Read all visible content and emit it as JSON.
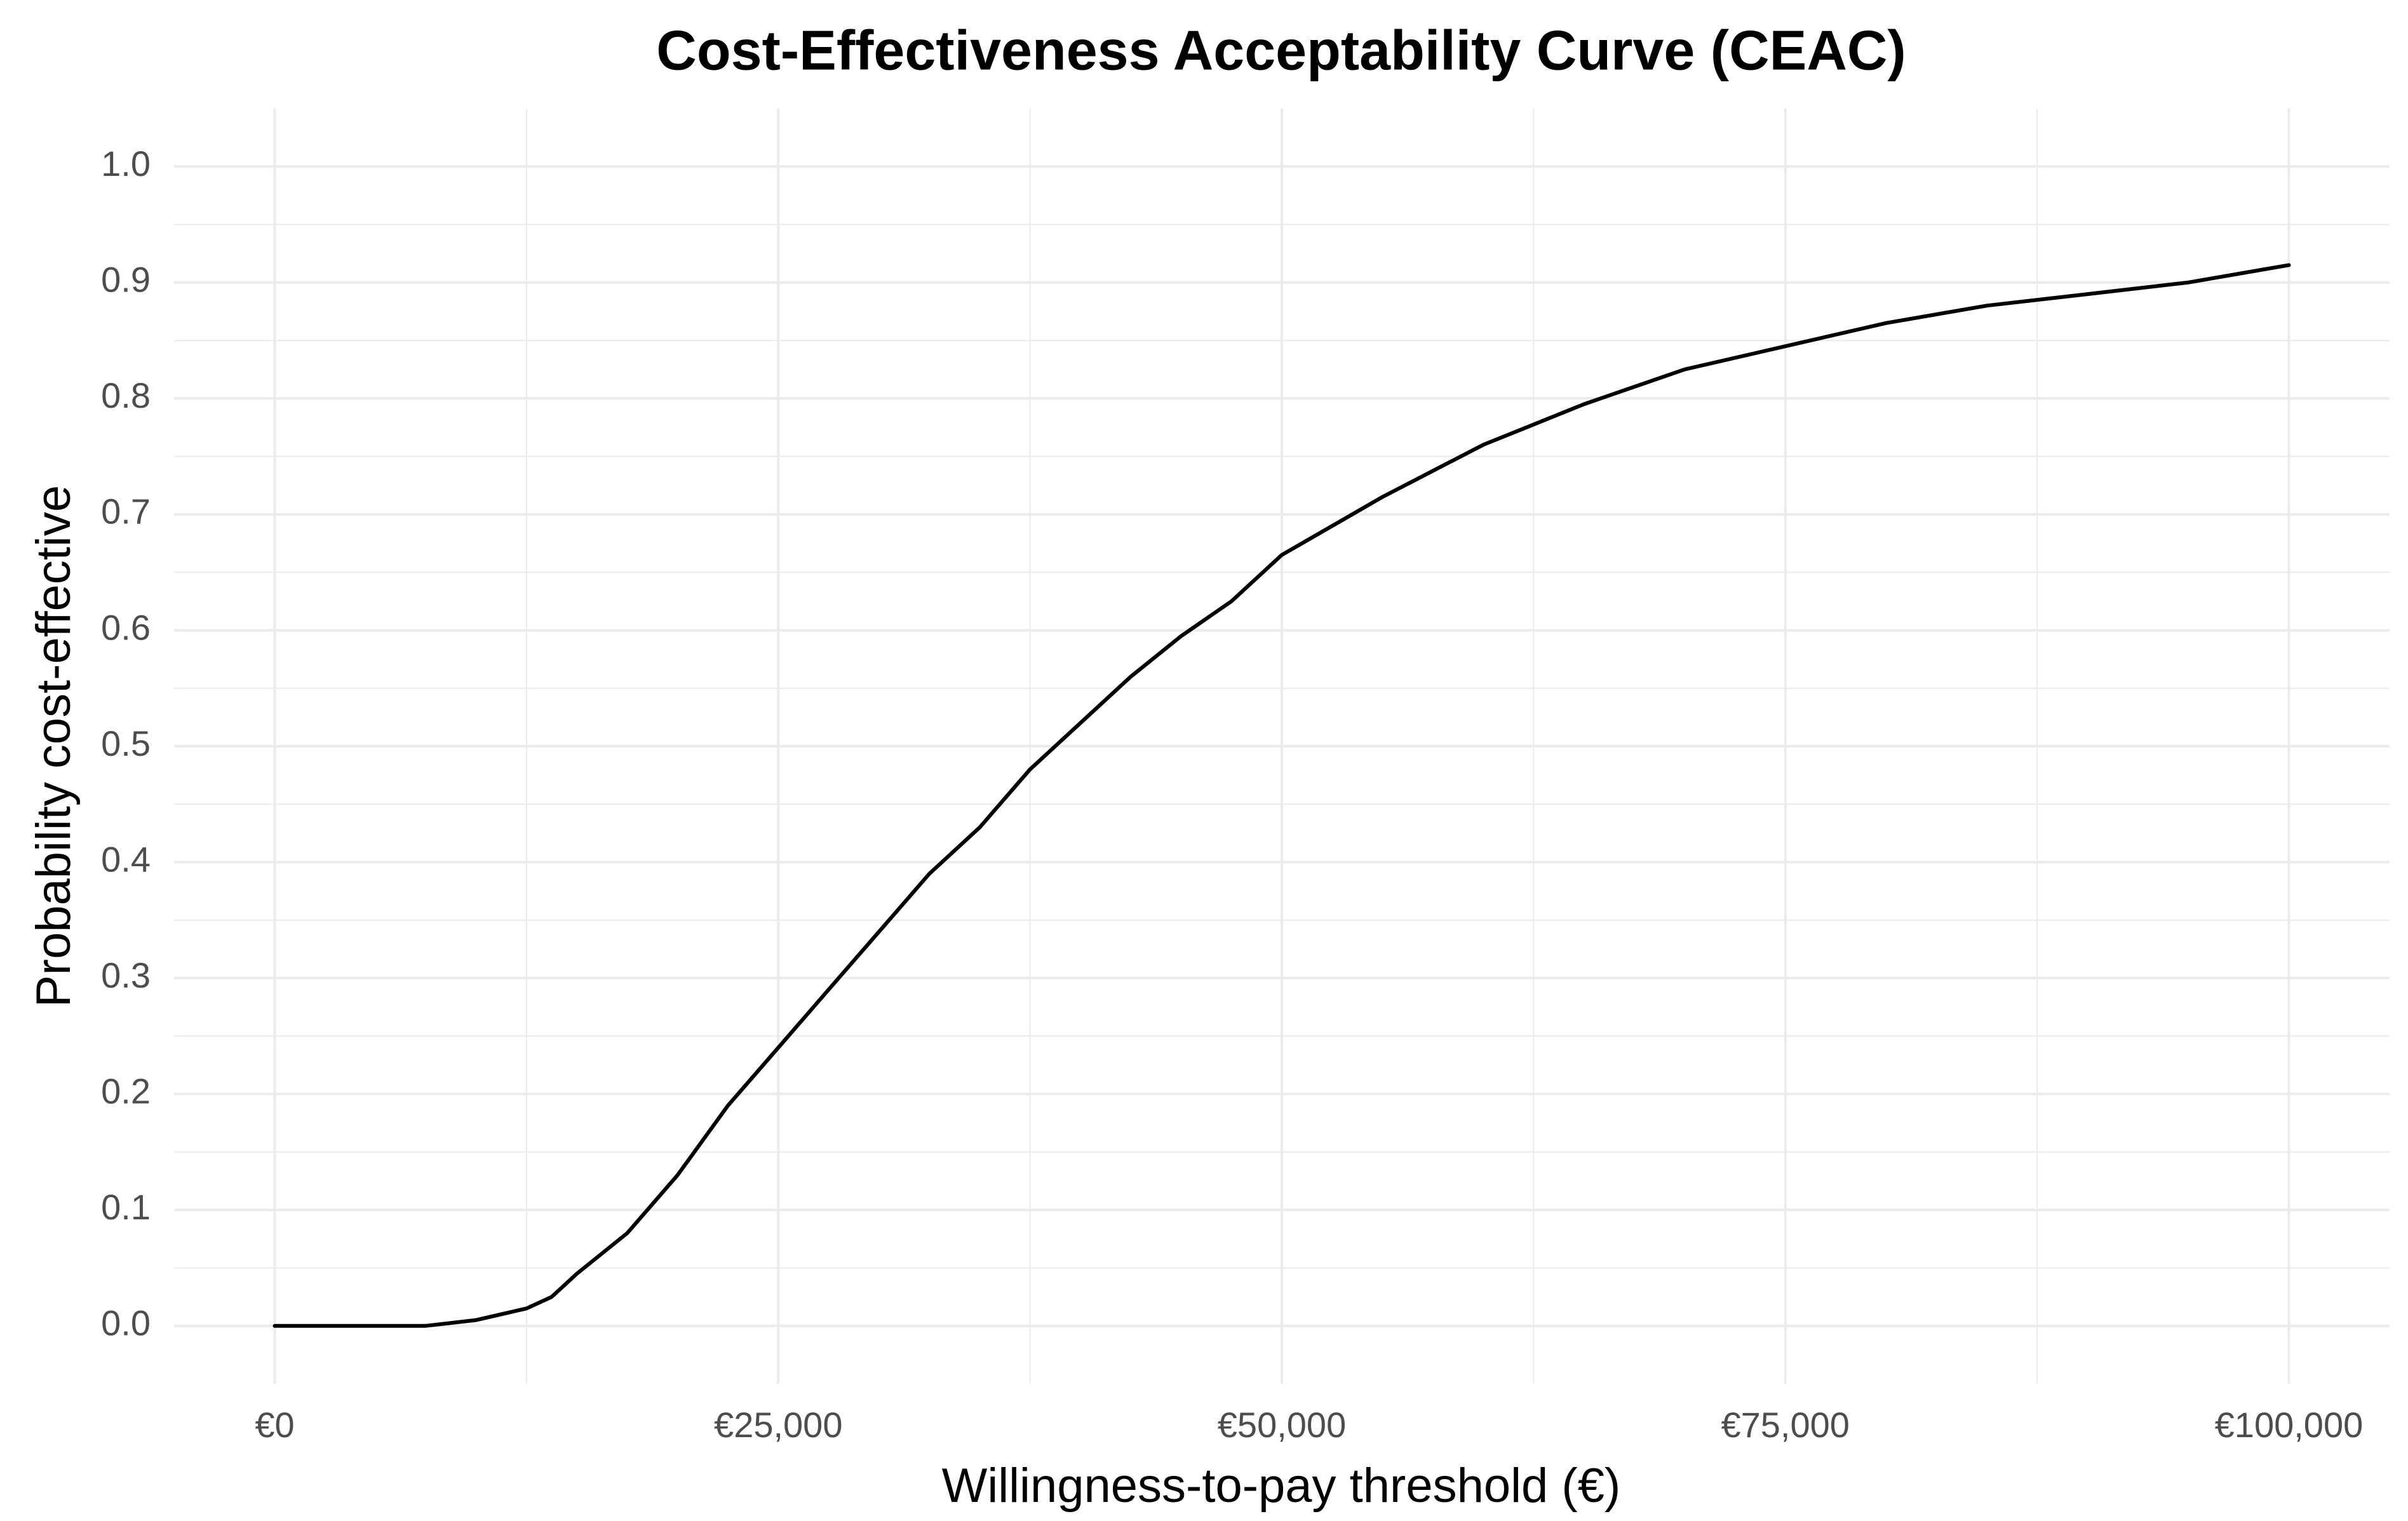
{
  "chart_data": {
    "type": "line",
    "title": "Cost-Effectiveness Acceptability Curve (CEAC)",
    "x_label": "Willingness-to-pay threshold (€)",
    "y_label": "Probability cost-effective",
    "x": [
      0,
      5000,
      7500,
      10000,
      12500,
      13750,
      15000,
      17500,
      20000,
      22500,
      25000,
      27500,
      30000,
      32500,
      35000,
      37500,
      40000,
      42500,
      45000,
      47500,
      50000,
      55000,
      60000,
      65000,
      70000,
      75000,
      80000,
      85000,
      90000,
      95000,
      100000
    ],
    "series": [
      {
        "name": "CEAC",
        "color": "#000000",
        "values": [
          0,
          0,
          0.0,
          0.005,
          0.015,
          0.025,
          0.045,
          0.08,
          0.13,
          0.19,
          0.24,
          0.29,
          0.34,
          0.39,
          0.43,
          0.48,
          0.52,
          0.56,
          0.595,
          0.625,
          0.665,
          0.715,
          0.76,
          0.795,
          0.825,
          0.845,
          0.865,
          0.88,
          0.89,
          0.9,
          0.915
        ]
      }
    ],
    "xlim": [
      -5000,
      105000
    ],
    "ylim": [
      -0.05,
      1.05
    ],
    "xticks": [
      {
        "value": 0,
        "label": "€0"
      },
      {
        "value": 25000,
        "label": "€25,000"
      },
      {
        "value": 50000,
        "label": "€50,000"
      },
      {
        "value": 75000,
        "label": "€75,000"
      },
      {
        "value": 100000,
        "label": "€100,000"
      }
    ],
    "yticks": [
      {
        "value": 0,
        "label": "0.0"
      },
      0.1,
      0.2,
      0.3,
      0.4,
      0.5,
      0.6,
      0.7,
      0.8,
      0.9,
      {
        "value": 1,
        "label": "1.0"
      }
    ],
    "x_minor_ticks": [
      12500,
      37500,
      62500,
      87500
    ],
    "y_minor_ticks": [
      0.05,
      0.15,
      0.25,
      0.35,
      0.45,
      0.55,
      0.65,
      0.75,
      0.85,
      0.95
    ],
    "grid": true
  }
}
